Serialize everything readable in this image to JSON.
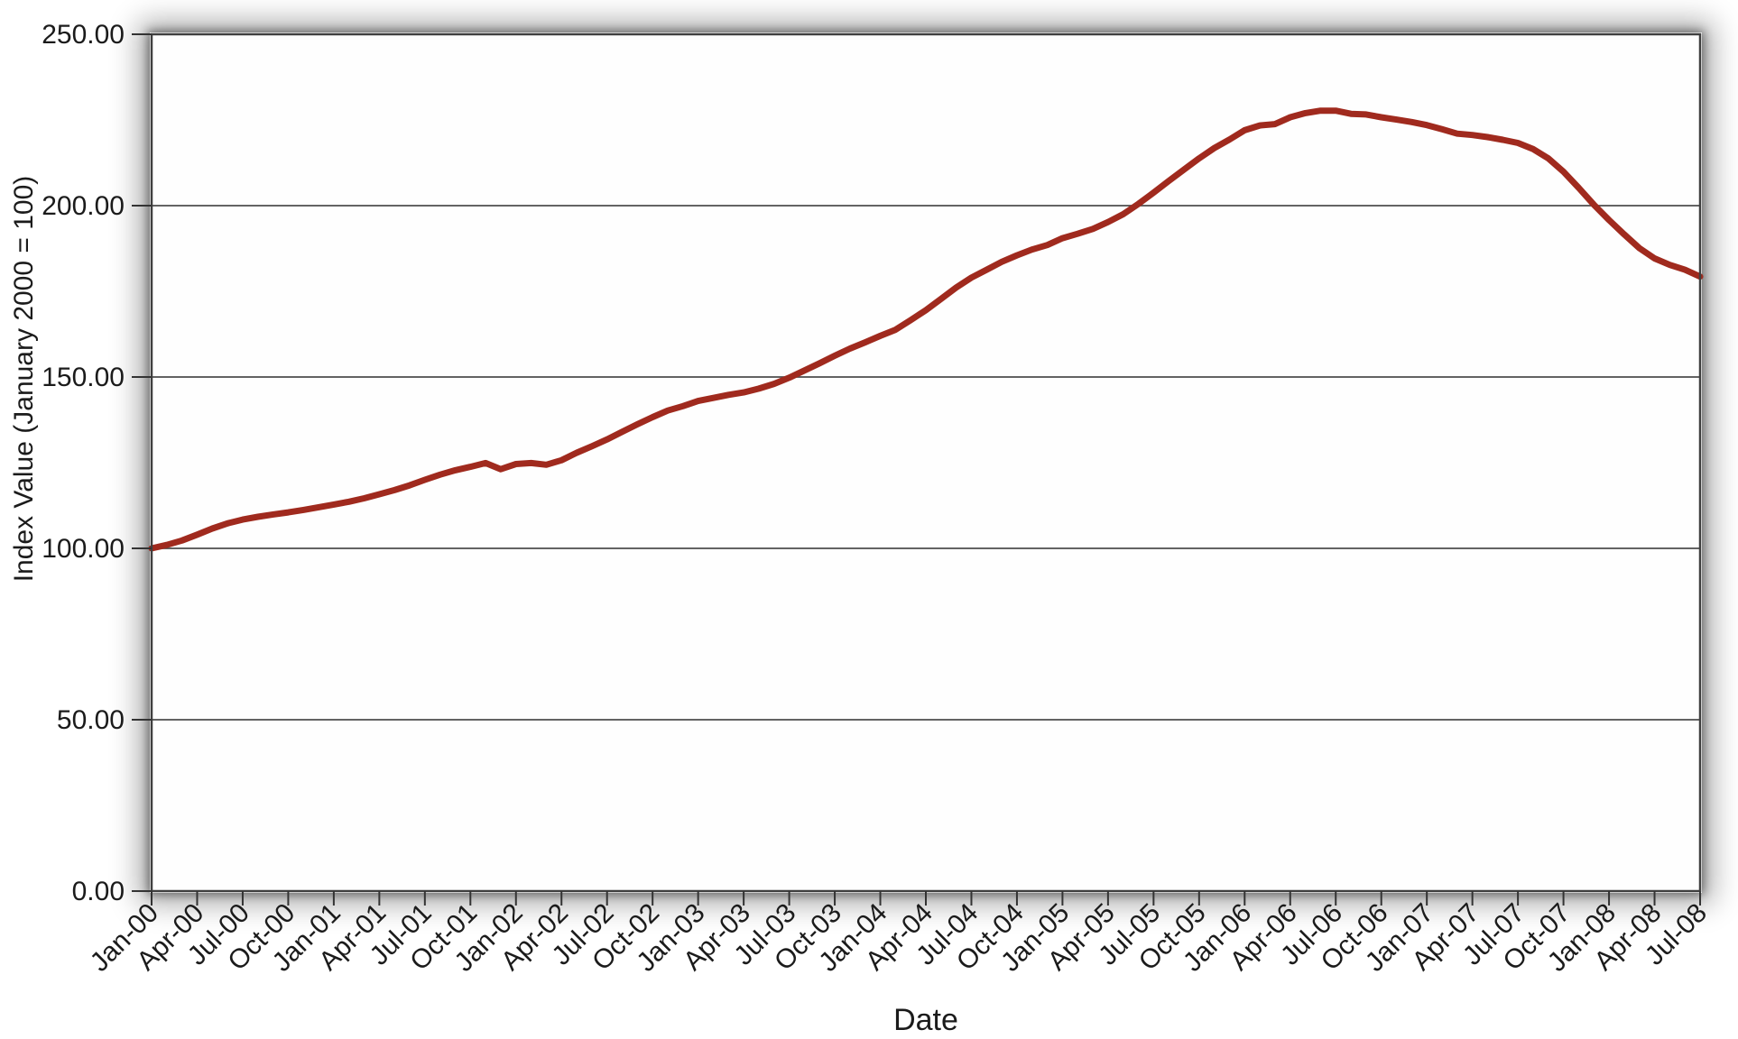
{
  "chart_data": {
    "type": "line",
    "title": "",
    "xlabel": "Date",
    "ylabel": "Index Value (January 2000 = 100)",
    "ylim": [
      0,
      250
    ],
    "grid": true,
    "legend_position": "none",
    "gridline_values": [
      50,
      100,
      150,
      200
    ],
    "ytick_values": [
      0,
      50,
      100,
      150,
      200,
      250
    ],
    "ytick_labels": [
      "0.00",
      "50.00",
      "100.00",
      "150.00",
      "200.00",
      "250.00"
    ],
    "xtick_labels": [
      "Jan-00",
      "Apr-00",
      "Jul-00",
      "Oct-00",
      "Jan-01",
      "Apr-01",
      "Jul-01",
      "Oct-01",
      "Jan-02",
      "Apr-02",
      "Jul-02",
      "Oct-02",
      "Jan-03",
      "Apr-03",
      "Jul-03",
      "Oct-03",
      "Jan-04",
      "Apr-04",
      "Jul-04",
      "Oct-04",
      "Jan-05",
      "Apr-05",
      "Jul-05",
      "Oct-05",
      "Jan-06",
      "Apr-06",
      "Jul-06",
      "Oct-06",
      "Jan-07",
      "Apr-07",
      "Jul-07",
      "Oct-07",
      "Jan-08",
      "Apr-08",
      "Jul-08"
    ],
    "x": [
      "Jan-00",
      "Feb-00",
      "Mar-00",
      "Apr-00",
      "May-00",
      "Jun-00",
      "Jul-00",
      "Aug-00",
      "Sep-00",
      "Oct-00",
      "Nov-00",
      "Dec-00",
      "Jan-01",
      "Feb-01",
      "Mar-01",
      "Apr-01",
      "May-01",
      "Jun-01",
      "Jul-01",
      "Aug-01",
      "Sep-01",
      "Oct-01",
      "Nov-01",
      "Dec-01",
      "Jan-02",
      "Feb-02",
      "Mar-02",
      "Apr-02",
      "May-02",
      "Jun-02",
      "Jul-02",
      "Aug-02",
      "Sep-02",
      "Oct-02",
      "Nov-02",
      "Dec-02",
      "Jan-03",
      "Feb-03",
      "Mar-03",
      "Apr-03",
      "May-03",
      "Jun-03",
      "Jul-03",
      "Aug-03",
      "Sep-03",
      "Oct-03",
      "Nov-03",
      "Dec-03",
      "Jan-04",
      "Feb-04",
      "Mar-04",
      "Apr-04",
      "May-04",
      "Jun-04",
      "Jul-04",
      "Aug-04",
      "Sep-04",
      "Oct-04",
      "Nov-04",
      "Dec-04",
      "Jan-05",
      "Feb-05",
      "Mar-05",
      "Apr-05",
      "May-05",
      "Jun-05",
      "Jul-05",
      "Aug-05",
      "Sep-05",
      "Oct-05",
      "Nov-05",
      "Dec-05",
      "Jan-06",
      "Feb-06",
      "Mar-06",
      "Apr-06",
      "May-06",
      "Jun-06",
      "Jul-06",
      "Aug-06",
      "Sep-06",
      "Oct-06",
      "Nov-06",
      "Dec-06",
      "Jan-07",
      "Feb-07",
      "Mar-07",
      "Apr-07",
      "May-07",
      "Jun-07",
      "Jul-07",
      "Aug-07",
      "Sep-07",
      "Oct-07",
      "Nov-07",
      "Dec-07",
      "Jan-08",
      "Feb-08",
      "Mar-08",
      "Apr-08",
      "May-08",
      "Jun-08",
      "Jul-08"
    ],
    "series": [
      {
        "name": "index_value",
        "color": "#A02A1E",
        "values": [
          100.0,
          101.0,
          102.3,
          104.0,
          105.8,
          107.3,
          108.4,
          109.2,
          109.9,
          110.5,
          111.2,
          112.0,
          112.8,
          113.6,
          114.6,
          115.8,
          117.0,
          118.4,
          120.0,
          121.5,
          122.8,
          123.8,
          124.9,
          123.1,
          124.6,
          124.9,
          124.4,
          125.7,
          127.9,
          129.8,
          131.8,
          134.0,
          136.2,
          138.3,
          140.2,
          141.5,
          143.0,
          143.9,
          144.8,
          145.5,
          146.6,
          148.0,
          149.8,
          151.9,
          154.0,
          156.2,
          158.3,
          160.1,
          162.0,
          163.8,
          166.6,
          169.5,
          172.8,
          176.1,
          179.0,
          181.3,
          183.6,
          185.5,
          187.2,
          188.5,
          190.5,
          191.8,
          193.2,
          195.2,
          197.5,
          200.5,
          203.8,
          207.2,
          210.5,
          213.8,
          216.8,
          219.3,
          222.0,
          223.4,
          223.8,
          225.8,
          227.0,
          227.7,
          227.7,
          226.8,
          226.6,
          225.8,
          225.1,
          224.4,
          223.5,
          222.3,
          221.0,
          220.6,
          220.0,
          219.2,
          218.3,
          216.5,
          213.8,
          209.9,
          205.2,
          200.3,
          195.8,
          191.6,
          187.6,
          184.6,
          182.7,
          181.3,
          179.3
        ]
      }
    ],
    "axis_colors": {
      "frame": "#3f3f3f",
      "gridline": "#4d4d4d",
      "tick": "#333333",
      "text": "#1b1b1b"
    }
  }
}
